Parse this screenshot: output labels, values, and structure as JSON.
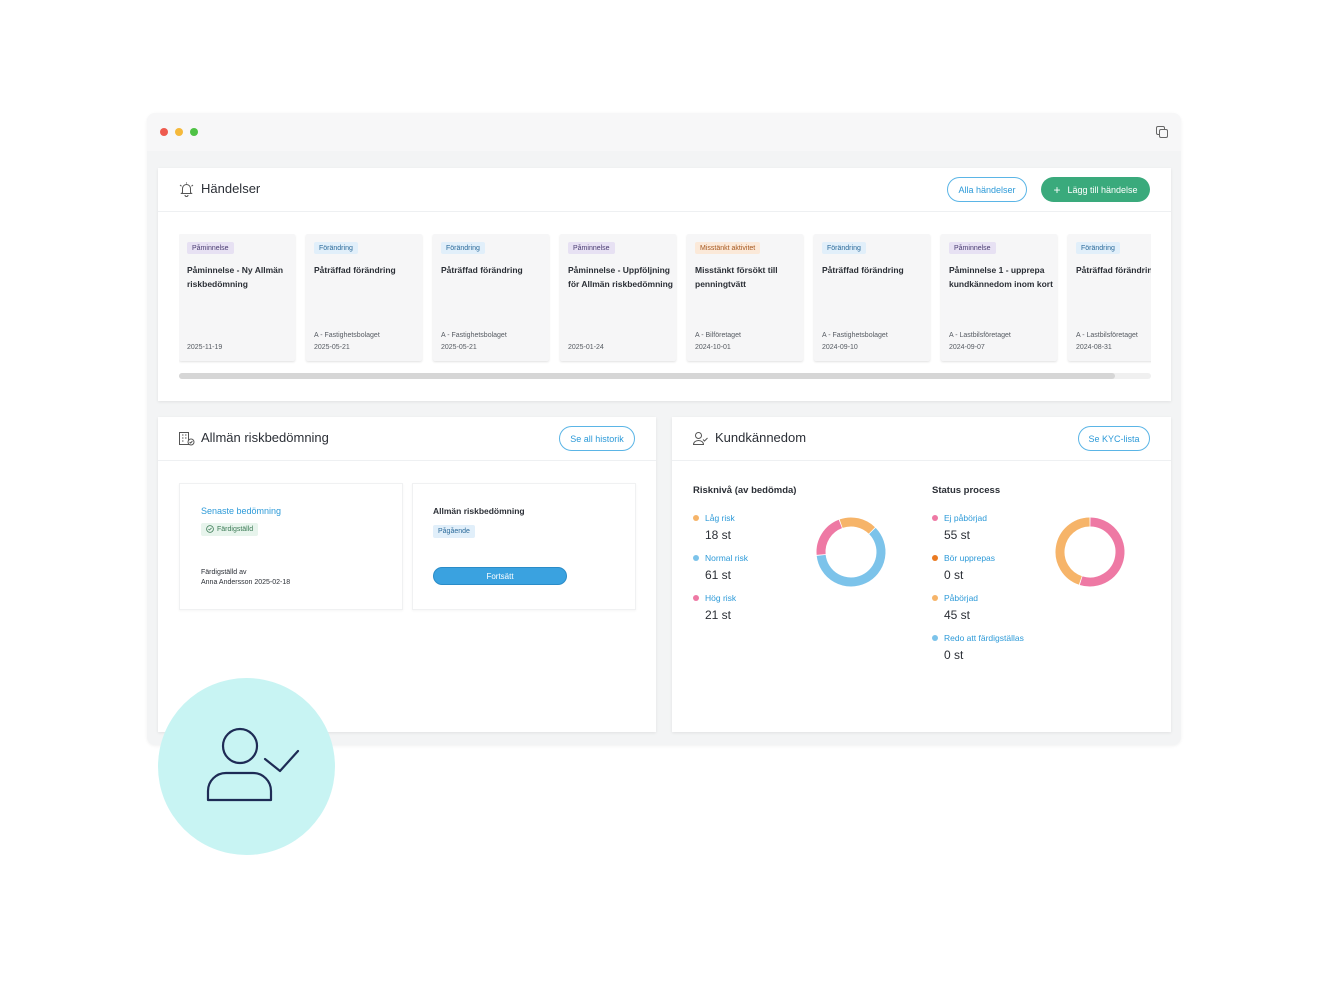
{
  "events_panel": {
    "title": "Händelser",
    "icon": "bell-icon",
    "all_button": "Alla händelser",
    "add_button": "Lägg till händelse",
    "cards": [
      {
        "tag": "Påminnelse",
        "type": "reminder",
        "title": "Påminnelse - Ny Allmän riskbedömning",
        "company": "",
        "date": "2025-11-19"
      },
      {
        "tag": "Förändring",
        "type": "change",
        "title": "Påträffad förändring",
        "company": "A - Fastighetsbolaget",
        "date": "2025-05-21"
      },
      {
        "tag": "Förändring",
        "type": "change",
        "title": "Påträffad förändring",
        "company": "A - Fastighetsbolaget",
        "date": "2025-05-21"
      },
      {
        "tag": "Påminnelse",
        "type": "reminder",
        "title": "Påminnelse - Uppföljning för Allmän riskbedömning",
        "company": "",
        "date": "2025-01-24"
      },
      {
        "tag": "Misstänkt aktivitet",
        "type": "suspicious",
        "title": "Misstänkt försökt till penningtvätt",
        "company": "A - Bilföretaget",
        "date": "2024-10-01"
      },
      {
        "tag": "Förändring",
        "type": "change",
        "title": "Påträffad förändring",
        "company": "A - Fastighetsbolaget",
        "date": "2024-09-10"
      },
      {
        "tag": "Påminnelse",
        "type": "reminder",
        "title": "Påminnelse 1 - upprepa kundkännedom inom kort",
        "company": "A - Lastbilsföretaget",
        "date": "2024-09-07"
      },
      {
        "tag": "Förändring",
        "type": "change",
        "title": "Påträffad förändring",
        "company": "A - Lastbilsföretaget",
        "date": "2024-08-31"
      }
    ]
  },
  "risk_panel": {
    "title": "Allmän riskbedömning",
    "icon": "building-check-icon",
    "history_button": "Se all historik",
    "latest": {
      "label": "Senaste bedömning",
      "status": "Färdigställd",
      "completed_by_label": "Färdigställd av",
      "completed_by": "Anna Andersson 2025-02-18"
    },
    "current": {
      "title": "Allmän riskbedömning",
      "status": "Pågående",
      "continue_button": "Fortsätt"
    }
  },
  "kyc_panel": {
    "title": "Kundkännedom",
    "icon": "user-check-icon",
    "list_button": "Se KYC-lista",
    "risk_level": {
      "title": "Risknivå (av bedömda)",
      "items": [
        {
          "label": "Låg risk",
          "value": "18 st",
          "count": 18,
          "color": "#f6b469"
        },
        {
          "label": "Normal risk",
          "value": "61 st",
          "count": 61,
          "color": "#7cc3ea"
        },
        {
          "label": "Hög risk",
          "value": "21 st",
          "count": 21,
          "color": "#ee79a4"
        }
      ]
    },
    "status_process": {
      "title": "Status process",
      "items": [
        {
          "label": "Ej påbörjad",
          "value": "55 st",
          "count": 55,
          "color": "#ee79a4"
        },
        {
          "label": "Bör upprepas",
          "value": "0 st",
          "count": 0,
          "color": "#ea7a21"
        },
        {
          "label": "Påbörjad",
          "value": "45 st",
          "count": 45,
          "color": "#f6b469"
        },
        {
          "label": "Redo att färdigställas",
          "value": "0 st",
          "count": 0,
          "color": "#7cc3ea"
        }
      ]
    }
  },
  "decor": {
    "avatar_icon": "user-check-icon",
    "avatar_bg": "#c8f4f3"
  }
}
